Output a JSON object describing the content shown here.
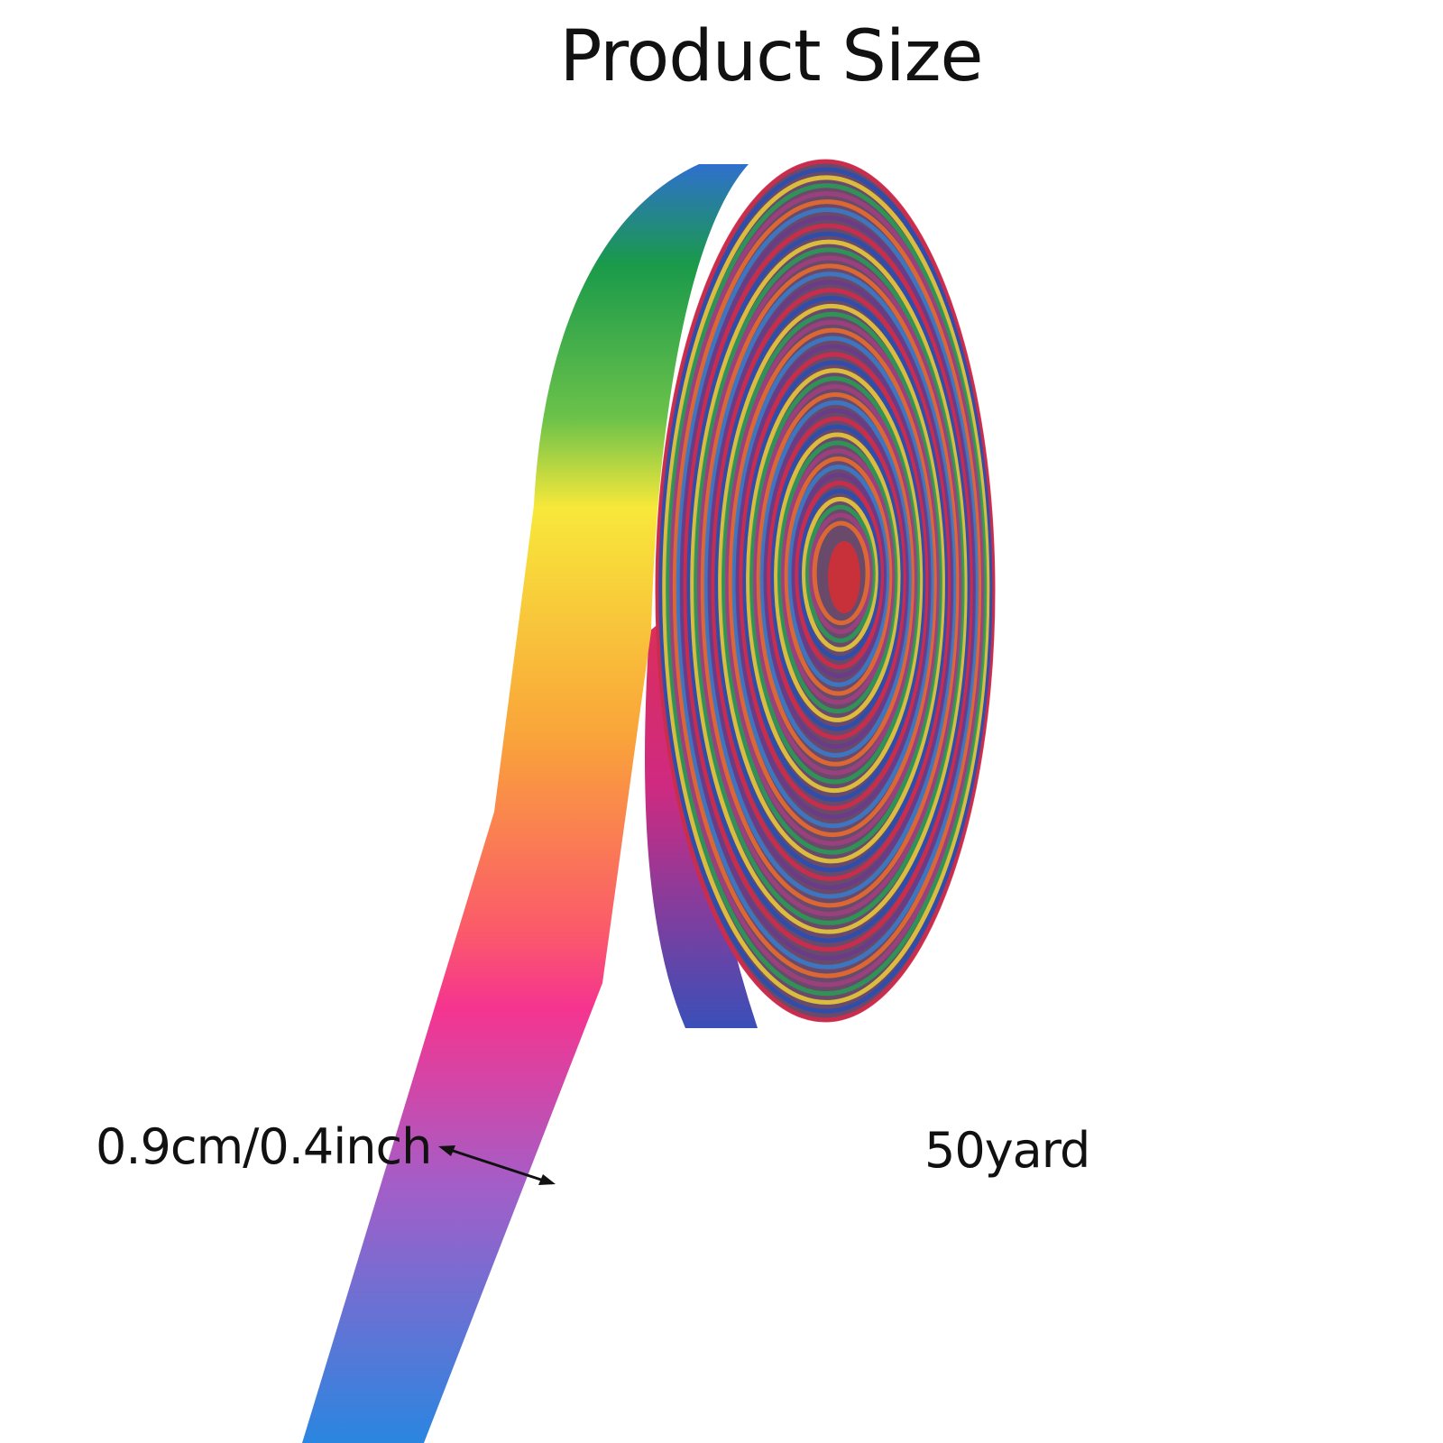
{
  "title": "Product Size",
  "width_label": "0.9cm/0.4inch",
  "length_label": "50yard",
  "ribbon_gradient": [
    "#2f6fd0",
    "#1a9a4a",
    "#6cc24a",
    "#f8e83a",
    "#f9a33a",
    "#fb5a6a",
    "#f5348f",
    "#a35ec8",
    "#2a86e0"
  ],
  "ring_palette": [
    "#d42a4a",
    "#2a4fb0",
    "#e8c93a",
    "#2b9a55",
    "#a04080",
    "#e86a30",
    "#3a7ac8",
    "#6a3a8a"
  ],
  "arrow_color": "#111111"
}
